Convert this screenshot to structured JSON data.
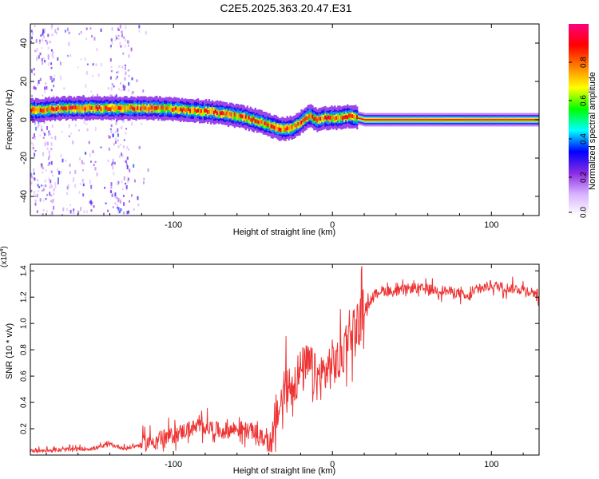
{
  "title": "C2E5.2025.363.20.47.E31",
  "chart_data": [
    {
      "type": "heatmap",
      "name": "spectrogram",
      "xlabel": "Height of straight line (km)",
      "ylabel": "Frequency (Hz)",
      "xlim": [
        -190,
        130
      ],
      "ylim": [
        -50,
        50
      ],
      "x_ticks": [
        -100,
        0,
        100
      ],
      "y_ticks": [
        -40,
        -20,
        0,
        20,
        40
      ],
      "colorbar": {
        "label": "Normalized spectral amplitude",
        "range": [
          0,
          1
        ],
        "ticks": [
          "0.0",
          "0.2",
          "0.4",
          "0.6",
          "0.8"
        ],
        "colors": [
          "#ffffff",
          "#d9b3ff",
          "#8a2be2",
          "#0000ff",
          "#00ffff",
          "#00ff00",
          "#ffff00",
          "#ff8000",
          "#ff0000",
          "#ff0080"
        ]
      },
      "ridge": {
        "x": [
          -185,
          -170,
          -150,
          -130,
          -110,
          -90,
          -75,
          -60,
          -50,
          -40,
          -32,
          -25,
          -20,
          -15,
          -10,
          -5,
          0,
          5,
          10,
          20,
          40,
          60,
          80,
          100,
          130
        ],
        "y": [
          5,
          6,
          6,
          6,
          6,
          5,
          4,
          2,
          0,
          -3,
          -5,
          -4,
          -1,
          2,
          0,
          1,
          1,
          1,
          2,
          0,
          0,
          0,
          0,
          0,
          0
        ]
      }
    },
    {
      "type": "line",
      "name": "snr",
      "xlabel": "Height of straight line (km)",
      "ylabel": "SNR (10 * v/v)",
      "y_scale_label": "(x10",
      "y_scale_exp": "4",
      "xlim": [
        -190,
        130
      ],
      "ylim": [
        0,
        14500
      ],
      "x_ticks": [
        -100,
        0,
        100
      ],
      "y_ticks": [
        "0.2",
        "0.4",
        "0.6",
        "0.8",
        "1.0",
        "1.2",
        "1.4"
      ],
      "color": "#ee3333",
      "series": {
        "x": [
          -190,
          -170,
          -150,
          -140,
          -130,
          -120,
          -110,
          -100,
          -90,
          -80,
          -70,
          -60,
          -50,
          -45,
          -40,
          -35,
          -30,
          -25,
          -20,
          -15,
          -10,
          -5,
          0,
          5,
          10,
          15,
          20,
          25,
          30,
          40,
          50,
          60,
          70,
          80,
          85,
          90,
          100,
          110,
          120,
          130
        ],
        "y": [
          300,
          400,
          500,
          800,
          500,
          800,
          1200,
          1500,
          2000,
          2200,
          1800,
          2000,
          1800,
          1300,
          1200,
          3000,
          4800,
          5500,
          6300,
          6800,
          5800,
          6200,
          7000,
          7000,
          9500,
          9800,
          11000,
          12000,
          12500,
          12400,
          12700,
          12600,
          12500,
          12300,
          11900,
          12500,
          12900,
          12700,
          12600,
          12200
        ]
      }
    }
  ]
}
